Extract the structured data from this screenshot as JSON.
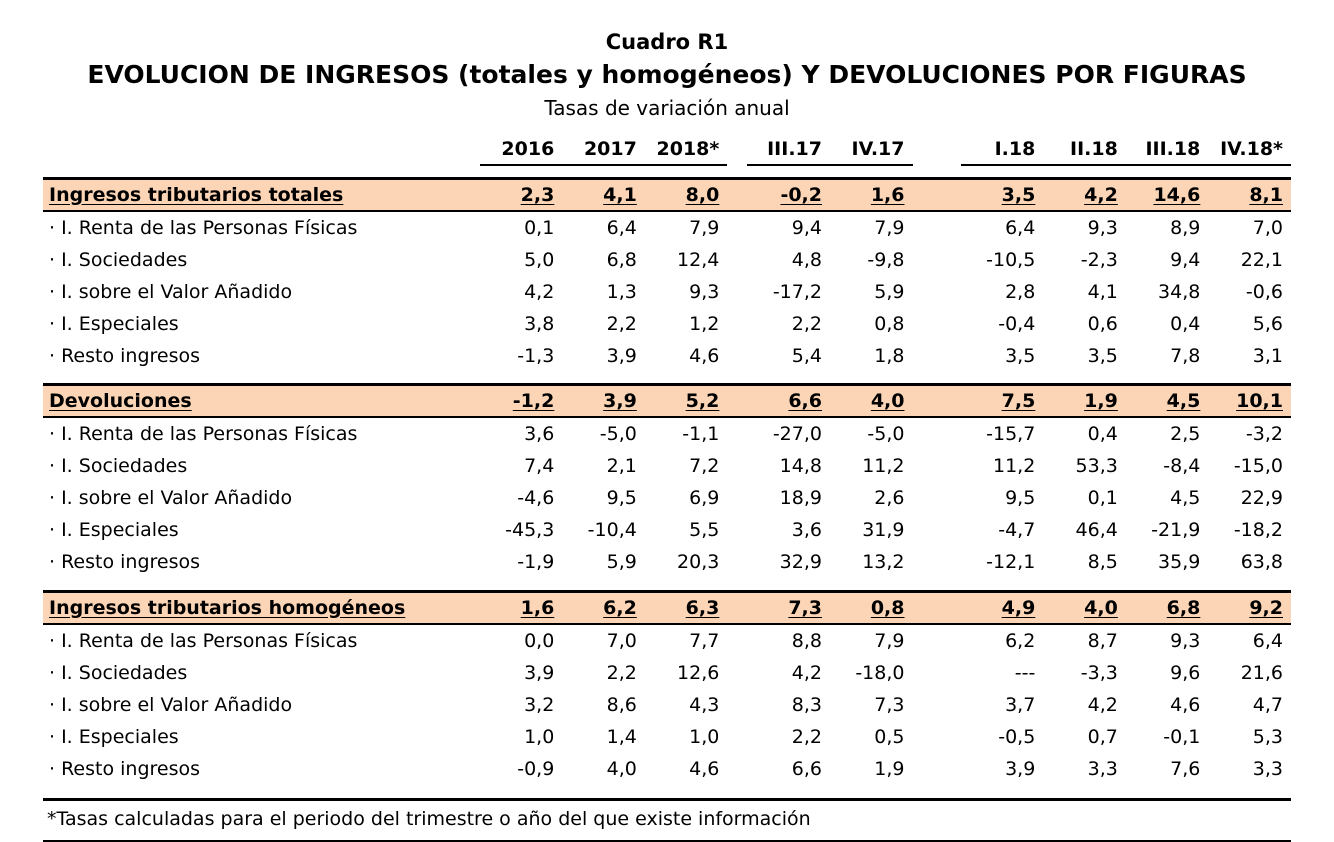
{
  "header": {
    "table_number": "Cuadro R1",
    "title": "EVOLUCION DE INGRESOS (totales y homogéneos) Y DEVOLUCIONES POR FIGURAS",
    "subtitle": "Tasas de variación anual"
  },
  "columns": [
    "2016",
    "2017",
    "2018*",
    "III.17",
    "IV.17",
    "I.18",
    "II.18",
    "III.18",
    "IV.18*"
  ],
  "sections": [
    {
      "label": "Ingresos tributarios totales",
      "values": [
        "2,3",
        "4,1",
        "8,0",
        "-0,2",
        "1,6",
        "3,5",
        "4,2",
        "14,6",
        "8,1"
      ],
      "rows": [
        {
          "label": "· I. Renta de las Personas Físicas",
          "values": [
            "0,1",
            "6,4",
            "7,9",
            "9,4",
            "7,9",
            "6,4",
            "9,3",
            "8,9",
            "7,0"
          ]
        },
        {
          "label": "· I. Sociedades",
          "values": [
            "5,0",
            "6,8",
            "12,4",
            "4,8",
            "-9,8",
            "-10,5",
            "-2,3",
            "9,4",
            "22,1"
          ]
        },
        {
          "label": "· I. sobre el Valor Añadido",
          "values": [
            "4,2",
            "1,3",
            "9,3",
            "-17,2",
            "5,9",
            "2,8",
            "4,1",
            "34,8",
            "-0,6"
          ]
        },
        {
          "label": "· I. Especiales",
          "values": [
            "3,8",
            "2,2",
            "1,2",
            "2,2",
            "0,8",
            "-0,4",
            "0,6",
            "0,4",
            "5,6"
          ]
        },
        {
          "label": "· Resto ingresos",
          "values": [
            "-1,3",
            "3,9",
            "4,6",
            "5,4",
            "1,8",
            "3,5",
            "3,5",
            "7,8",
            "3,1"
          ]
        }
      ]
    },
    {
      "label": "Devoluciones",
      "values": [
        "-1,2",
        "3,9",
        "5,2",
        "6,6",
        "4,0",
        "7,5",
        "1,9",
        "4,5",
        "10,1"
      ],
      "rows": [
        {
          "label": "· I. Renta de las Personas Físicas",
          "values": [
            "3,6",
            "-5,0",
            "-1,1",
            "-27,0",
            "-5,0",
            "-15,7",
            "0,4",
            "2,5",
            "-3,2"
          ]
        },
        {
          "label": "· I. Sociedades",
          "values": [
            "7,4",
            "2,1",
            "7,2",
            "14,8",
            "11,2",
            "11,2",
            "53,3",
            "-8,4",
            "-15,0"
          ]
        },
        {
          "label": "· I. sobre el Valor Añadido",
          "values": [
            "-4,6",
            "9,5",
            "6,9",
            "18,9",
            "2,6",
            "9,5",
            "0,1",
            "4,5",
            "22,9"
          ]
        },
        {
          "label": "· I. Especiales",
          "values": [
            "-45,3",
            "-10,4",
            "5,5",
            "3,6",
            "31,9",
            "-4,7",
            "46,4",
            "-21,9",
            "-18,2"
          ]
        },
        {
          "label": "· Resto ingresos",
          "values": [
            "-1,9",
            "5,9",
            "20,3",
            "32,9",
            "13,2",
            "-12,1",
            "8,5",
            "35,9",
            "63,8"
          ]
        }
      ]
    },
    {
      "label": "Ingresos tributarios homogéneos",
      "values": [
        "1,6",
        "6,2",
        "6,3",
        "7,3",
        "0,8",
        "4,9",
        "4,0",
        "6,8",
        "9,2"
      ],
      "rows": [
        {
          "label": "· I. Renta de las Personas Físicas",
          "values": [
            "0,0",
            "7,0",
            "7,7",
            "8,8",
            "7,9",
            "6,2",
            "8,7",
            "9,3",
            "6,4"
          ]
        },
        {
          "label": "· I. Sociedades",
          "values": [
            "3,9",
            "2,2",
            "12,6",
            "4,2",
            "-18,0",
            "---",
            "-3,3",
            "9,6",
            "21,6"
          ]
        },
        {
          "label": "· I. sobre el Valor Añadido",
          "values": [
            "3,2",
            "8,6",
            "4,3",
            "8,3",
            "7,3",
            "3,7",
            "4,2",
            "4,6",
            "4,7"
          ]
        },
        {
          "label": "· I. Especiales",
          "values": [
            "1,0",
            "1,4",
            "1,0",
            "2,2",
            "0,5",
            "-0,5",
            "0,7",
            "-0,1",
            "5,3"
          ]
        },
        {
          "label": "· Resto ingresos",
          "values": [
            "-0,9",
            "4,0",
            "4,6",
            "6,6",
            "1,9",
            "3,9",
            "3,3",
            "7,6",
            "3,3"
          ]
        }
      ]
    }
  ],
  "footnote": "*Tasas calculadas para el periodo del trimestre o año del que existe información",
  "colors": {
    "section_bg": "#FBD5B5"
  }
}
